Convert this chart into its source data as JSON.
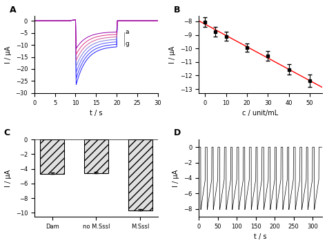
{
  "panel_A": {
    "label": "A",
    "xlabel": "t / s",
    "ylabel": "I / μA",
    "ylim": [
      -30,
      2
    ],
    "yticks": [
      -30,
      -25,
      -20,
      -15,
      -10,
      -5,
      0
    ],
    "xticks": [
      0,
      5,
      10,
      15,
      20,
      25,
      30
    ],
    "n_curves": 7,
    "colors": [
      "#1a1aff",
      "#3333ff",
      "#5555ff",
      "#7777dd",
      "#cc5599",
      "#dd3388",
      "#9900aa"
    ],
    "peak_t": 10.0,
    "off_t": 20.0,
    "peak_vals": [
      -26.5,
      -24.0,
      -21.5,
      -19.0,
      -16.5,
      -14.0,
      -11.5
    ],
    "steady_vals": [
      -10.5,
      -9.5,
      -8.5,
      -7.5,
      -6.5,
      -5.5,
      -4.5
    ],
    "tau": 2.5
  },
  "panel_B": {
    "label": "B",
    "xlabel": "c / unit/mL",
    "ylabel": "I / μA",
    "xlim": [
      -3,
      56
    ],
    "ylim": [
      -13.3,
      -7.6
    ],
    "yticks": [
      -13,
      -12,
      -11,
      -10,
      -9,
      -8
    ],
    "xticks": [
      0,
      10,
      20,
      30,
      40,
      50
    ],
    "x_data": [
      0,
      5,
      10,
      20,
      30,
      40,
      50
    ],
    "y_data": [
      -8.05,
      -8.75,
      -9.1,
      -9.95,
      -10.55,
      -11.55,
      -12.4
    ],
    "y_err": [
      0.35,
      0.35,
      0.35,
      0.3,
      0.35,
      0.38,
      0.45
    ],
    "line_color": "#ff0000",
    "marker_color": "#000000"
  },
  "panel_C": {
    "label": "C",
    "ylabel": "I / μA",
    "categories": [
      "Dam",
      "no M.SssI",
      "M.SssI"
    ],
    "values": [
      -4.7,
      -4.6,
      -9.7
    ],
    "errors": [
      0.18,
      0.18,
      0.18
    ],
    "ylim": [
      -10.5,
      0
    ],
    "yticks": [
      -10,
      -8,
      -6,
      -4,
      -2,
      0
    ],
    "bar_color": "#e0e0e0",
    "hatch": "///",
    "bar_width": 0.55
  },
  "panel_D": {
    "label": "D",
    "xlabel": "t / s",
    "ylabel": "I / μA",
    "xlim": [
      0,
      325
    ],
    "ylim": [
      -9,
      1
    ],
    "yticks": [
      -8,
      -6,
      -4,
      -2,
      0
    ],
    "xticks": [
      0,
      50,
      100,
      150,
      200,
      250,
      300
    ],
    "pulse_starts": [
      5,
      22,
      38,
      55,
      72,
      88,
      105,
      121,
      138,
      154,
      171,
      188,
      204,
      221,
      237,
      254,
      271,
      287,
      304
    ],
    "pulse_peak": -8.1,
    "pulse_steady": -4.2,
    "pulse_on_duration": 12,
    "rise_time": 0.3
  }
}
